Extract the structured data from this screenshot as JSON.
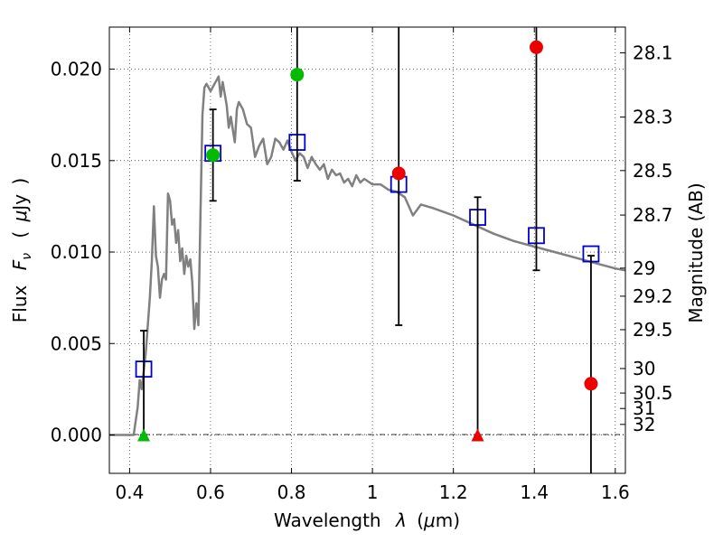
{
  "chart_data": {
    "type": "scatter",
    "xlabel_parts": [
      "Wavelength",
      "λ",
      "(",
      "μ",
      "m)"
    ],
    "ylabel_parts": [
      "Flux",
      "F",
      "ν",
      "(",
      "μ",
      "Jy",
      ")"
    ],
    "y2label": "Magnitude (AB)",
    "xlim": [
      0.35,
      1.625
    ],
    "ylim": [
      -0.0021,
      0.0223
    ],
    "grid": true,
    "x_ticks": [
      {
        "v": 0.4,
        "label": "0.4"
      },
      {
        "v": 0.6,
        "label": "0.6"
      },
      {
        "v": 0.8,
        "label": "0.8"
      },
      {
        "v": 1.0,
        "label": "1"
      },
      {
        "v": 1.2,
        "label": "1.2"
      },
      {
        "v": 1.4,
        "label": "1.4"
      },
      {
        "v": 1.6,
        "label": "1.6"
      }
    ],
    "y_ticks": [
      {
        "v": 0.0,
        "label": "0.000"
      },
      {
        "v": 0.005,
        "label": "0.005"
      },
      {
        "v": 0.01,
        "label": "0.010"
      },
      {
        "v": 0.015,
        "label": "0.015"
      },
      {
        "v": 0.02,
        "label": "0.020"
      }
    ],
    "mag_ticks": [
      {
        "mag": 28.1,
        "label": "28.1"
      },
      {
        "mag": 28.3,
        "label": "28.3"
      },
      {
        "mag": 28.5,
        "label": "28.5"
      },
      {
        "mag": 28.7,
        "label": "28.7"
      },
      {
        "mag": 29,
        "label": "29"
      },
      {
        "mag": 29.2,
        "label": "29.2"
      },
      {
        "mag": 29.5,
        "label": "29.5"
      },
      {
        "mag": 30,
        "label": "30"
      },
      {
        "mag": 30.5,
        "label": "30.5"
      },
      {
        "mag": 31,
        "label": "31"
      },
      {
        "mag": 32,
        "label": "32"
      }
    ],
    "model_sed": {
      "name": "model spectrum",
      "color": "#808080",
      "x": [
        0.35,
        0.41,
        0.42,
        0.425,
        0.43,
        0.44,
        0.45,
        0.455,
        0.46,
        0.465,
        0.47,
        0.475,
        0.48,
        0.485,
        0.49,
        0.495,
        0.5,
        0.505,
        0.51,
        0.515,
        0.52,
        0.525,
        0.53,
        0.535,
        0.54,
        0.545,
        0.55,
        0.555,
        0.56,
        0.565,
        0.57,
        0.575,
        0.58,
        0.585,
        0.59,
        0.6,
        0.61,
        0.62,
        0.625,
        0.63,
        0.64,
        0.645,
        0.65,
        0.66,
        0.665,
        0.67,
        0.68,
        0.69,
        0.7,
        0.71,
        0.72,
        0.73,
        0.74,
        0.75,
        0.76,
        0.77,
        0.78,
        0.79,
        0.8,
        0.81,
        0.82,
        0.83,
        0.84,
        0.85,
        0.86,
        0.87,
        0.88,
        0.89,
        0.9,
        0.91,
        0.92,
        0.93,
        0.94,
        0.95,
        0.96,
        0.97,
        0.98,
        1.0,
        1.02,
        1.04,
        1.06,
        1.08,
        1.1,
        1.12,
        1.15,
        1.2,
        1.25,
        1.3,
        1.35,
        1.4,
        1.45,
        1.5,
        1.55,
        1.6,
        1.625
      ],
      "y": [
        0.0,
        0.0,
        0.0015,
        0.003,
        0.0025,
        0.0045,
        0.0075,
        0.0095,
        0.0125,
        0.0098,
        0.0092,
        0.0075,
        0.0085,
        0.0088,
        0.0085,
        0.0132,
        0.0128,
        0.0115,
        0.0118,
        0.0105,
        0.0112,
        0.0095,
        0.0102,
        0.0088,
        0.0098,
        0.0092,
        0.0096,
        0.0083,
        0.0058,
        0.0072,
        0.006,
        0.012,
        0.0175,
        0.019,
        0.0192,
        0.0188,
        0.0192,
        0.0196,
        0.0185,
        0.0193,
        0.018,
        0.0168,
        0.0174,
        0.016,
        0.0178,
        0.0182,
        0.0178,
        0.017,
        0.0168,
        0.0152,
        0.0158,
        0.0162,
        0.0148,
        0.0152,
        0.0162,
        0.016,
        0.0156,
        0.0161,
        0.0155,
        0.015,
        0.0154,
        0.0152,
        0.0146,
        0.0152,
        0.0148,
        0.0145,
        0.0148,
        0.014,
        0.0145,
        0.0142,
        0.0143,
        0.0138,
        0.014,
        0.0136,
        0.0142,
        0.0138,
        0.014,
        0.0137,
        0.0137,
        0.0134,
        0.0133,
        0.013,
        0.012,
        0.0126,
        0.0124,
        0.012,
        0.0115,
        0.011,
        0.0106,
        0.0103,
        0.01,
        0.0097,
        0.0094,
        0.0091,
        0.009
      ]
    },
    "model_points": {
      "name": "model photometry",
      "color": "#0000cc",
      "points": [
        {
          "x": 0.435,
          "y": 0.0036
        },
        {
          "x": 0.606,
          "y": 0.0154
        },
        {
          "x": 0.814,
          "y": 0.016
        },
        {
          "x": 1.065,
          "y": 0.0137
        },
        {
          "x": 1.26,
          "y": 0.0119
        },
        {
          "x": 1.405,
          "y": 0.0109
        },
        {
          "x": 1.54,
          "y": 0.0099
        }
      ]
    },
    "observations": [
      {
        "x": 0.606,
        "y": 0.0153,
        "err_low": 0.0025,
        "err_high": 0.0025,
        "color": "#00bb00",
        "marker": "circle"
      },
      {
        "x": 0.814,
        "y": 0.0197,
        "err_low": 0.0058,
        "err_high": 0.0255,
        "color": "#00bb00",
        "marker": "circle"
      },
      {
        "x": 1.065,
        "y": 0.0143,
        "err_low": 0.0083,
        "err_high": 0.0255,
        "color": "#ee0000",
        "marker": "circle"
      },
      {
        "x": 1.405,
        "y": 0.0212,
        "err_low": 0.0122,
        "err_high": 0.0255,
        "color": "#ee0000",
        "marker": "circle"
      },
      {
        "x": 1.54,
        "y": 0.0028,
        "err_low": 0.0255,
        "err_high": 0.007,
        "color": "#ee0000",
        "marker": "circle"
      },
      {
        "x": 0.435,
        "y": 0.0,
        "err_low": 0.0,
        "err_high": 0.0057,
        "color": "#00bb00",
        "marker": "triangle"
      },
      {
        "x": 1.26,
        "y": 0.0,
        "err_low": 0.0,
        "err_high": 0.013,
        "color": "#ee0000",
        "marker": "triangle"
      }
    ]
  }
}
